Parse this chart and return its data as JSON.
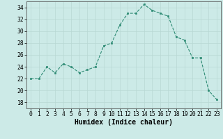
{
  "x": [
    0,
    1,
    2,
    3,
    4,
    5,
    6,
    7,
    8,
    9,
    10,
    11,
    12,
    13,
    14,
    15,
    16,
    17,
    18,
    19,
    20,
    21,
    22,
    23
  ],
  "y": [
    22,
    22,
    24,
    23,
    24.5,
    24,
    23,
    23.5,
    24,
    27.5,
    28,
    31,
    33,
    33,
    34.5,
    33.5,
    33,
    32.5,
    29,
    28.5,
    25.5,
    25.5,
    20,
    18.5
  ],
  "line_color": "#2e8b74",
  "marker_color": "#2e8b74",
  "bg_color": "#cceae7",
  "grid_color": "#b8d8d4",
  "xlabel": "Humidex (Indice chaleur)",
  "xlim": [
    -0.5,
    23.5
  ],
  "ylim": [
    17,
    35
  ],
  "yticks": [
    18,
    20,
    22,
    24,
    26,
    28,
    30,
    32,
    34
  ],
  "xticks": [
    0,
    1,
    2,
    3,
    4,
    5,
    6,
    7,
    8,
    9,
    10,
    11,
    12,
    13,
    14,
    15,
    16,
    17,
    18,
    19,
    20,
    21,
    22,
    23
  ],
  "tick_label_fontsize": 5.8,
  "xlabel_fontsize": 7.0
}
